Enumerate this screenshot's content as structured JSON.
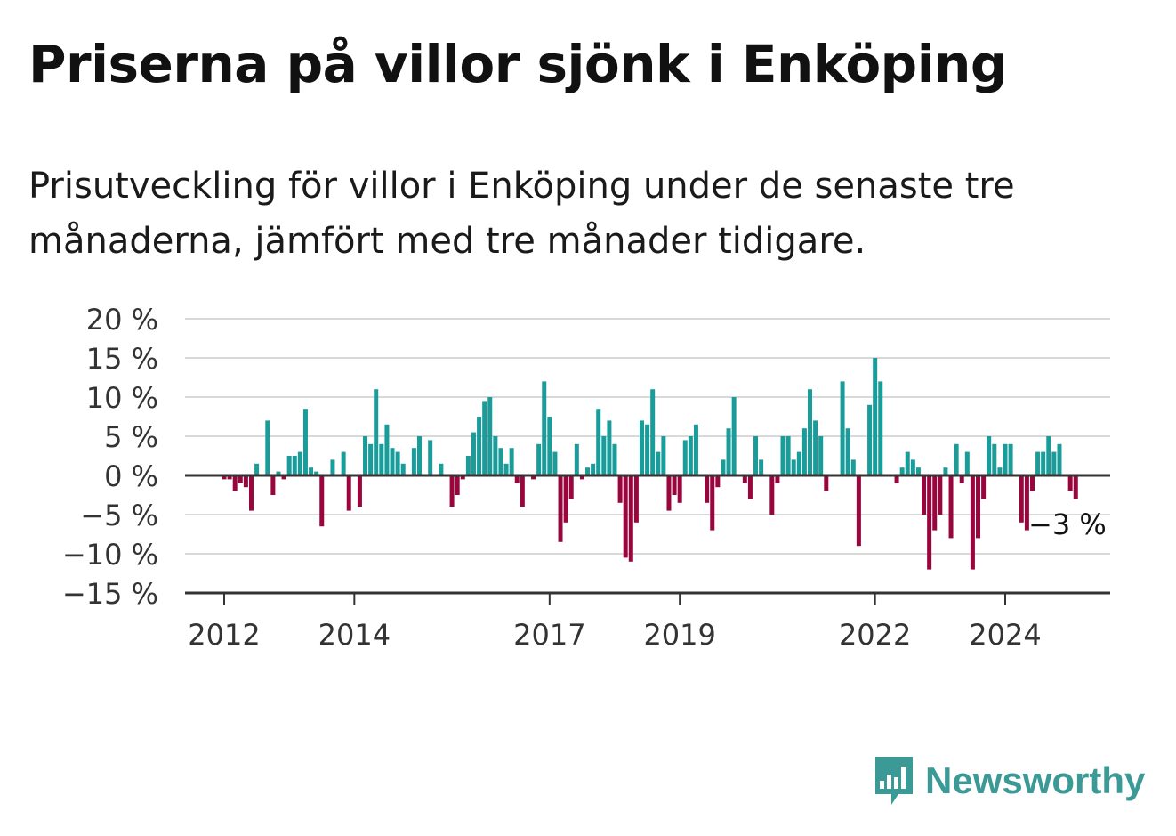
{
  "title": "Priserna på villor sjönk i Enköping",
  "subtitle": "Prisutveckling för villor i Enköping under de senaste tre månaderna, jämfört med tre månader tidigare.",
  "brand": {
    "name": "Newsworthy"
  },
  "colors": {
    "positive": "#1a9c9a",
    "negative": "#99063e",
    "grid": "#d9d9d9",
    "axis": "#333333",
    "brand": "#3b9a96"
  },
  "chart_data": {
    "type": "bar",
    "x_start": "2012-01",
    "x_end": "2025-01",
    "x_ticks": [
      "2012",
      "2014",
      "2017",
      "2019",
      "2022",
      "2024"
    ],
    "y_ticks": [
      "20 %",
      "15 %",
      "10 %",
      "5 %",
      "0 %",
      "−5 %",
      "−10 %",
      "−15 %"
    ],
    "ylim": [
      -15,
      20
    ],
    "grid": true,
    "last_label": "−3 %",
    "values": [
      -0.5,
      -0.5,
      -2,
      -1,
      -1.5,
      -4.5,
      1.5,
      0,
      7,
      -2.5,
      0.5,
      -0.5,
      2.5,
      2.5,
      3,
      8.5,
      1,
      0.5,
      -6.5,
      0,
      2,
      0,
      3,
      -4.5,
      0,
      -4,
      5,
      4,
      11,
      4,
      6.5,
      3.5,
      3,
      1.5,
      0,
      3.5,
      5,
      0,
      4.5,
      0,
      1.5,
      0,
      -4,
      -2.5,
      -0.5,
      2.5,
      5.5,
      7.5,
      9.5,
      10,
      5,
      3.5,
      1.5,
      3.5,
      -1,
      -4,
      0,
      -0.5,
      4,
      12,
      7.5,
      3,
      -8.5,
      -6,
      -3,
      4,
      -0.5,
      1,
      1.5,
      8.5,
      5,
      7,
      4,
      -3.5,
      -10.5,
      -11,
      -6,
      7,
      6.5,
      11,
      3,
      5,
      -4.5,
      -2.5,
      -3.5,
      4.5,
      5,
      6.5,
      0,
      -3.5,
      -7,
      -1.5,
      2,
      6,
      10,
      0,
      -1,
      -3,
      5,
      2,
      0,
      -5,
      -1,
      5,
      5,
      2,
      3,
      6,
      11,
      7,
      5,
      -2,
      0,
      0,
      12,
      6,
      2,
      -9,
      0,
      9,
      15,
      12,
      0,
      0,
      -1,
      1,
      3,
      2,
      1,
      -5,
      -12,
      -7,
      -5,
      1,
      -8,
      4,
      -1,
      3,
      -12,
      -8,
      -3,
      5,
      4,
      1,
      4,
      4,
      0,
      -6,
      -7,
      -2,
      3,
      3,
      5,
      3,
      4,
      0,
      -2,
      -3
    ]
  }
}
